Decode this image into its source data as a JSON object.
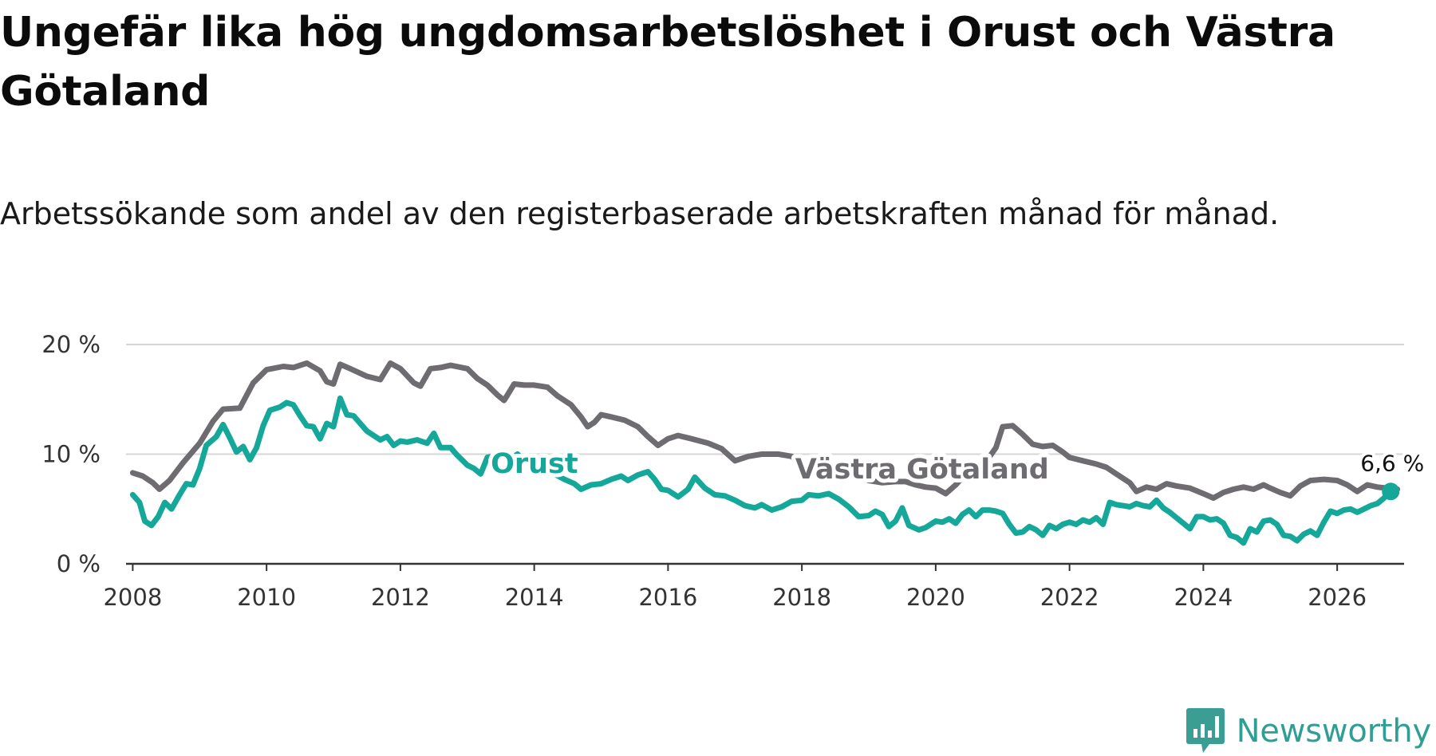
{
  "title": "Ungefär lika hög ungdomsarbetslöshet i Orust och Västra Götaland",
  "subtitle": "Arbetssökande som andel av den registerbaserade arbetskraften månad för månad.",
  "brand": {
    "name": "Newsworthy",
    "icon": "newsworthy-chart-bubble-icon",
    "color": "#3a9e94"
  },
  "chart_data": {
    "type": "line",
    "title": "Ungefär lika hög ungdomsarbetslöshet i Orust och Västra Götaland",
    "xlabel": "",
    "ylabel": "",
    "xlim": [
      2007.9,
      2027
    ],
    "ylim": [
      0,
      20
    ],
    "x_ticks": [
      2008,
      2010,
      2012,
      2014,
      2016,
      2018,
      2020,
      2022,
      2024,
      2026
    ],
    "x_tick_labels": [
      "2008",
      "2010",
      "2012",
      "2014",
      "2016",
      "2018",
      "2020",
      "2022",
      "2024",
      "2026"
    ],
    "y_ticks": [
      0,
      10,
      20
    ],
    "y_tick_labels": [
      "0 %",
      "10 %",
      "20 %"
    ],
    "grid": true,
    "legend": "inline labels",
    "end_label": "6,6 %",
    "series": [
      {
        "name": "Västra Götaland",
        "color": "#6e6c70",
        "points": [
          [
            2008.0,
            8.3
          ],
          [
            2008.15,
            8.0
          ],
          [
            2008.3,
            7.4
          ],
          [
            2008.4,
            6.8
          ],
          [
            2008.55,
            7.6
          ],
          [
            2008.75,
            9.2
          ],
          [
            2009.0,
            11.0
          ],
          [
            2009.2,
            13.0
          ],
          [
            2009.35,
            14.1
          ],
          [
            2009.6,
            14.2
          ],
          [
            2009.8,
            16.5
          ],
          [
            2010.0,
            17.7
          ],
          [
            2010.25,
            18.0
          ],
          [
            2010.4,
            17.9
          ],
          [
            2010.6,
            18.3
          ],
          [
            2010.8,
            17.6
          ],
          [
            2010.9,
            16.6
          ],
          [
            2011.0,
            16.4
          ],
          [
            2011.1,
            18.2
          ],
          [
            2011.25,
            17.8
          ],
          [
            2011.5,
            17.1
          ],
          [
            2011.7,
            16.8
          ],
          [
            2011.85,
            18.3
          ],
          [
            2012.0,
            17.8
          ],
          [
            2012.2,
            16.5
          ],
          [
            2012.3,
            16.2
          ],
          [
            2012.45,
            17.8
          ],
          [
            2012.6,
            17.9
          ],
          [
            2012.75,
            18.1
          ],
          [
            2013.0,
            17.8
          ],
          [
            2013.15,
            16.9
          ],
          [
            2013.3,
            16.3
          ],
          [
            2013.45,
            15.4
          ],
          [
            2013.55,
            14.9
          ],
          [
            2013.7,
            16.4
          ],
          [
            2013.85,
            16.3
          ],
          [
            2014.0,
            16.3
          ],
          [
            2014.2,
            16.1
          ],
          [
            2014.35,
            15.3
          ],
          [
            2014.55,
            14.5
          ],
          [
            2014.7,
            13.4
          ],
          [
            2014.8,
            12.5
          ],
          [
            2014.9,
            12.9
          ],
          [
            2015.0,
            13.6
          ],
          [
            2015.15,
            13.4
          ],
          [
            2015.35,
            13.1
          ],
          [
            2015.55,
            12.5
          ],
          [
            2015.7,
            11.6
          ],
          [
            2015.85,
            10.8
          ],
          [
            2016.0,
            11.4
          ],
          [
            2016.15,
            11.7
          ],
          [
            2016.35,
            11.4
          ],
          [
            2016.6,
            11.0
          ],
          [
            2016.8,
            10.5
          ],
          [
            2017.0,
            9.4
          ],
          [
            2017.2,
            9.8
          ],
          [
            2017.4,
            10.0
          ],
          [
            2017.65,
            10.0
          ],
          [
            2017.85,
            9.8
          ],
          [
            2018.0,
            9.0
          ],
          [
            2018.15,
            8.3
          ],
          [
            2018.3,
            7.9
          ],
          [
            2018.5,
            8.3
          ],
          [
            2018.65,
            8.5
          ],
          [
            2018.85,
            8.0
          ],
          [
            2019.0,
            7.6
          ],
          [
            2019.2,
            7.4
          ],
          [
            2019.4,
            7.5
          ],
          [
            2019.55,
            7.5
          ],
          [
            2019.7,
            7.2
          ],
          [
            2019.85,
            7.0
          ],
          [
            2020.0,
            6.9
          ],
          [
            2020.15,
            6.4
          ],
          [
            2020.3,
            7.2
          ],
          [
            2020.45,
            8.2
          ],
          [
            2020.6,
            8.7
          ],
          [
            2020.75,
            9.3
          ],
          [
            2020.9,
            10.6
          ],
          [
            2021.0,
            12.5
          ],
          [
            2021.15,
            12.6
          ],
          [
            2021.3,
            11.8
          ],
          [
            2021.45,
            10.9
          ],
          [
            2021.6,
            10.7
          ],
          [
            2021.75,
            10.8
          ],
          [
            2021.9,
            10.2
          ],
          [
            2022.0,
            9.7
          ],
          [
            2022.2,
            9.4
          ],
          [
            2022.4,
            9.1
          ],
          [
            2022.55,
            8.8
          ],
          [
            2022.7,
            8.2
          ],
          [
            2022.9,
            7.4
          ],
          [
            2023.0,
            6.6
          ],
          [
            2023.15,
            7.0
          ],
          [
            2023.3,
            6.8
          ],
          [
            2023.45,
            7.3
          ],
          [
            2023.6,
            7.1
          ],
          [
            2023.8,
            6.9
          ],
          [
            2024.0,
            6.4
          ],
          [
            2024.15,
            6.0
          ],
          [
            2024.3,
            6.5
          ],
          [
            2024.45,
            6.8
          ],
          [
            2024.6,
            7.0
          ],
          [
            2024.75,
            6.8
          ],
          [
            2024.9,
            7.2
          ],
          [
            2025.0,
            6.9
          ],
          [
            2025.15,
            6.5
          ],
          [
            2025.3,
            6.2
          ],
          [
            2025.45,
            7.1
          ],
          [
            2025.6,
            7.6
          ],
          [
            2025.8,
            7.7
          ],
          [
            2026.0,
            7.6
          ],
          [
            2026.15,
            7.2
          ],
          [
            2026.3,
            6.6
          ],
          [
            2026.45,
            7.2
          ],
          [
            2026.6,
            7.0
          ],
          [
            2026.75,
            6.9
          ],
          [
            2026.9,
            6.8
          ]
        ]
      },
      {
        "name": "Orust",
        "color": "#14a79a",
        "points": [
          [
            2008.0,
            6.3
          ],
          [
            2008.1,
            5.6
          ],
          [
            2008.18,
            3.9
          ],
          [
            2008.28,
            3.5
          ],
          [
            2008.38,
            4.3
          ],
          [
            2008.48,
            5.6
          ],
          [
            2008.58,
            5.0
          ],
          [
            2008.7,
            6.3
          ],
          [
            2008.8,
            7.3
          ],
          [
            2008.9,
            7.2
          ],
          [
            2009.0,
            8.7
          ],
          [
            2009.1,
            10.8
          ],
          [
            2009.25,
            11.6
          ],
          [
            2009.35,
            12.7
          ],
          [
            2009.45,
            11.5
          ],
          [
            2009.55,
            10.2
          ],
          [
            2009.65,
            10.7
          ],
          [
            2009.75,
            9.5
          ],
          [
            2009.85,
            10.6
          ],
          [
            2009.95,
            12.6
          ],
          [
            2010.05,
            14.0
          ],
          [
            2010.2,
            14.3
          ],
          [
            2010.3,
            14.7
          ],
          [
            2010.4,
            14.5
          ],
          [
            2010.5,
            13.5
          ],
          [
            2010.6,
            12.6
          ],
          [
            2010.7,
            12.5
          ],
          [
            2010.8,
            11.4
          ],
          [
            2010.9,
            12.8
          ],
          [
            2011.0,
            12.5
          ],
          [
            2011.1,
            15.1
          ],
          [
            2011.2,
            13.6
          ],
          [
            2011.3,
            13.5
          ],
          [
            2011.4,
            12.8
          ],
          [
            2011.5,
            12.1
          ],
          [
            2011.6,
            11.7
          ],
          [
            2011.7,
            11.3
          ],
          [
            2011.8,
            11.6
          ],
          [
            2011.9,
            10.8
          ],
          [
            2012.0,
            11.2
          ],
          [
            2012.1,
            11.1
          ],
          [
            2012.25,
            11.3
          ],
          [
            2012.4,
            11.0
          ],
          [
            2012.5,
            11.9
          ],
          [
            2012.6,
            10.6
          ],
          [
            2012.75,
            10.6
          ],
          [
            2012.85,
            9.9
          ],
          [
            2013.0,
            9.0
          ],
          [
            2013.1,
            8.7
          ],
          [
            2013.2,
            8.2
          ],
          [
            2013.3,
            9.7
          ],
          [
            2013.45,
            9.9
          ],
          [
            2013.55,
            10.1
          ],
          [
            2013.65,
            9.6
          ],
          [
            2013.75,
            10.0
          ],
          [
            2013.85,
            9.4
          ],
          [
            2014.0,
            9.5
          ],
          [
            2014.15,
            8.6
          ],
          [
            2014.3,
            8.2
          ],
          [
            2014.45,
            7.7
          ],
          [
            2014.6,
            7.3
          ],
          [
            2014.7,
            6.8
          ],
          [
            2014.85,
            7.2
          ],
          [
            2015.0,
            7.3
          ],
          [
            2015.15,
            7.7
          ],
          [
            2015.3,
            8.0
          ],
          [
            2015.4,
            7.6
          ],
          [
            2015.55,
            8.1
          ],
          [
            2015.7,
            8.4
          ],
          [
            2015.8,
            7.7
          ],
          [
            2015.9,
            6.8
          ],
          [
            2016.0,
            6.7
          ],
          [
            2016.15,
            6.1
          ],
          [
            2016.3,
            6.8
          ],
          [
            2016.4,
            7.9
          ],
          [
            2016.55,
            6.9
          ],
          [
            2016.7,
            6.3
          ],
          [
            2016.85,
            6.2
          ],
          [
            2017.0,
            5.8
          ],
          [
            2017.15,
            5.3
          ],
          [
            2017.3,
            5.1
          ],
          [
            2017.4,
            5.4
          ],
          [
            2017.55,
            4.9
          ],
          [
            2017.7,
            5.2
          ],
          [
            2017.85,
            5.7
          ],
          [
            2018.0,
            5.8
          ],
          [
            2018.1,
            6.3
          ],
          [
            2018.25,
            6.2
          ],
          [
            2018.4,
            6.4
          ],
          [
            2018.55,
            5.9
          ],
          [
            2018.7,
            5.2
          ],
          [
            2018.85,
            4.3
          ],
          [
            2019.0,
            4.4
          ],
          [
            2019.1,
            4.8
          ],
          [
            2019.2,
            4.5
          ],
          [
            2019.3,
            3.4
          ],
          [
            2019.4,
            3.9
          ],
          [
            2019.5,
            5.1
          ],
          [
            2019.6,
            3.5
          ],
          [
            2019.75,
            3.1
          ],
          [
            2019.85,
            3.3
          ],
          [
            2020.0,
            3.9
          ],
          [
            2020.1,
            3.8
          ],
          [
            2020.2,
            4.1
          ],
          [
            2020.3,
            3.7
          ],
          [
            2020.4,
            4.5
          ],
          [
            2020.5,
            4.9
          ],
          [
            2020.6,
            4.3
          ],
          [
            2020.7,
            4.9
          ],
          [
            2020.8,
            4.9
          ],
          [
            2020.9,
            4.8
          ],
          [
            2021.0,
            4.6
          ],
          [
            2021.1,
            3.6
          ],
          [
            2021.2,
            2.8
          ],
          [
            2021.3,
            2.9
          ],
          [
            2021.4,
            3.4
          ],
          [
            2021.5,
            3.1
          ],
          [
            2021.6,
            2.6
          ],
          [
            2021.7,
            3.5
          ],
          [
            2021.8,
            3.2
          ],
          [
            2021.9,
            3.6
          ],
          [
            2022.0,
            3.8
          ],
          [
            2022.1,
            3.6
          ],
          [
            2022.2,
            4.0
          ],
          [
            2022.3,
            3.8
          ],
          [
            2022.4,
            4.2
          ],
          [
            2022.5,
            3.6
          ],
          [
            2022.6,
            5.6
          ],
          [
            2022.7,
            5.4
          ],
          [
            2022.8,
            5.3
          ],
          [
            2022.9,
            5.2
          ],
          [
            2023.0,
            5.5
          ],
          [
            2023.1,
            5.3
          ],
          [
            2023.2,
            5.2
          ],
          [
            2023.3,
            5.8
          ],
          [
            2023.4,
            5.1
          ],
          [
            2023.5,
            4.7
          ],
          [
            2023.6,
            4.2
          ],
          [
            2023.7,
            3.7
          ],
          [
            2023.8,
            3.2
          ],
          [
            2023.9,
            4.3
          ],
          [
            2024.0,
            4.3
          ],
          [
            2024.1,
            4.0
          ],
          [
            2024.2,
            4.1
          ],
          [
            2024.3,
            3.7
          ],
          [
            2024.4,
            2.6
          ],
          [
            2024.5,
            2.4
          ],
          [
            2024.6,
            1.9
          ],
          [
            2024.7,
            3.2
          ],
          [
            2024.8,
            2.9
          ],
          [
            2024.9,
            3.9
          ],
          [
            2025.0,
            4.0
          ],
          [
            2025.1,
            3.6
          ],
          [
            2025.2,
            2.6
          ],
          [
            2025.3,
            2.5
          ],
          [
            2025.4,
            2.1
          ],
          [
            2025.5,
            2.7
          ],
          [
            2025.6,
            3.0
          ],
          [
            2025.7,
            2.6
          ],
          [
            2025.8,
            3.8
          ],
          [
            2025.9,
            4.8
          ],
          [
            2026.0,
            4.6
          ],
          [
            2026.1,
            4.9
          ],
          [
            2026.2,
            5.0
          ],
          [
            2026.3,
            4.7
          ],
          [
            2026.4,
            5.0
          ],
          [
            2026.5,
            5.3
          ],
          [
            2026.6,
            5.5
          ],
          [
            2026.7,
            6.0
          ],
          [
            2026.8,
            6.6
          ]
        ]
      }
    ]
  }
}
